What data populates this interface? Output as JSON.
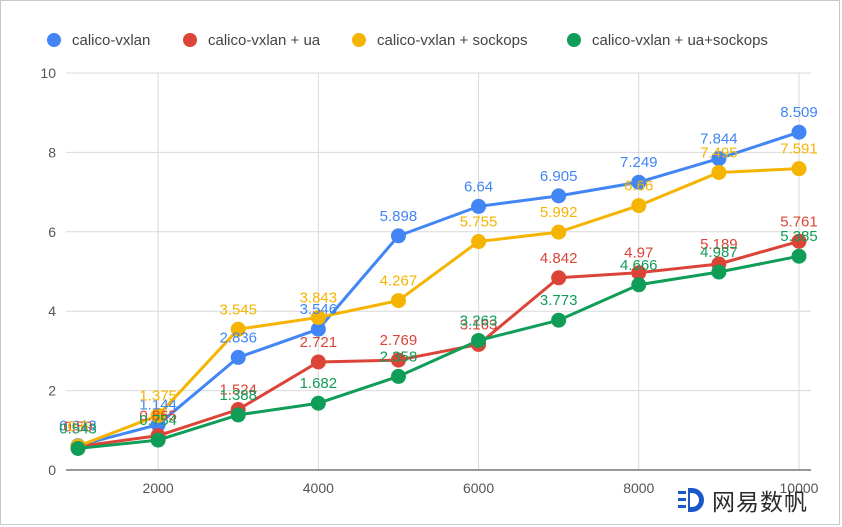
{
  "chart_data": {
    "type": "line",
    "title": "",
    "xlabel": "",
    "ylabel": "",
    "x": [
      1000,
      2000,
      3000,
      4000,
      5000,
      6000,
      7000,
      8000,
      9000,
      10000
    ],
    "xticks": [
      "2000",
      "4000",
      "6000",
      "8000",
      "10000"
    ],
    "xtick_values": [
      2000,
      4000,
      6000,
      8000,
      10000
    ],
    "yticks": [
      "0",
      "2",
      "4",
      "6",
      "8",
      "10"
    ],
    "ytick_values": [
      0,
      2,
      4,
      6,
      8,
      10
    ],
    "xlim": [
      850,
      10150
    ],
    "ylim": [
      0,
      10
    ],
    "grid": true,
    "legend_position": "top",
    "series": [
      {
        "name": "calico-vxlan",
        "color": "#4285f4",
        "values": [
          0.613,
          1.144,
          2.836,
          3.546,
          5.898,
          6.64,
          6.905,
          7.249,
          7.844,
          8.509
        ],
        "labels": [
          "0.613",
          "1.144",
          "2.836",
          "3.546",
          "5.898",
          "6.64",
          "6.905",
          "7.249",
          "7.844",
          "8.509"
        ]
      },
      {
        "name": "calico-vxlan + ua",
        "color": "#db4437",
        "values": [
          0.59,
          0.865,
          1.524,
          2.721,
          2.769,
          3.163,
          4.842,
          4.97,
          5.189,
          5.761
        ],
        "labels": [
          "0.59",
          "0.865",
          "1.524",
          "2.721",
          "2.769",
          "3.163",
          "4.842",
          "4.97",
          "5.189",
          "5.761"
        ]
      },
      {
        "name": "calico-vxlan + sockops",
        "color": "#f4b400",
        "values": [
          0.6,
          1.375,
          3.545,
          3.843,
          4.267,
          5.755,
          5.992,
          6.66,
          7.495,
          7.591
        ],
        "labels": [
          "0.6",
          "1.375",
          "3.545",
          "3.843",
          "4.267",
          "5.755",
          "5.992",
          "6.66",
          "7.495",
          "7.591"
        ]
      },
      {
        "name": "calico-vxlan + ua+sockops",
        "color": "#0f9d58",
        "values": [
          0.543,
          0.754,
          1.388,
          1.682,
          2.358,
          3.263,
          3.773,
          4.666,
          4.987,
          5.385
        ],
        "labels": [
          "0.543",
          "0.754",
          "1.388",
          "1.682",
          "2.358",
          "3.263",
          "3.773",
          "4.666",
          "4.987",
          "5.385"
        ]
      }
    ]
  },
  "watermark": {
    "text": "网易数帆"
  }
}
